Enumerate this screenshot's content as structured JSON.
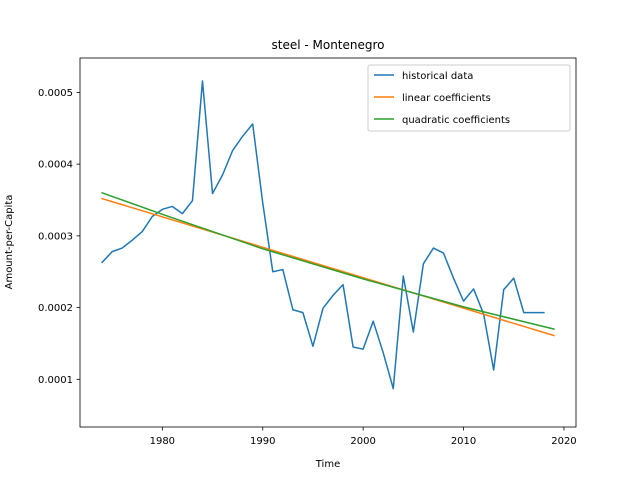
{
  "chart_data": {
    "type": "line",
    "title": "steel - Montenegro",
    "xlabel": "Time",
    "ylabel": "Amount-per-Capita",
    "xlim": [
      1971.8,
      2021.2
    ],
    "ylim": [
      3.35e-05,
      0.000548
    ],
    "xticks": [
      1980,
      1990,
      2000,
      2010,
      2020
    ],
    "xtick_labels": [
      "1980",
      "1990",
      "2000",
      "2010",
      "2020"
    ],
    "yticks": [
      0.0001,
      0.0002,
      0.0003,
      0.0004,
      0.0005
    ],
    "ytick_labels": [
      "0.0001",
      "0.0002",
      "0.0003",
      "0.0004",
      "0.0005"
    ],
    "grid": false,
    "legend_position": "top-right",
    "series": [
      {
        "name": "historical data",
        "color": "#1f77b4",
        "x": [
          1974,
          1975,
          1976,
          1977,
          1978,
          1979,
          1980,
          1981,
          1982,
          1983,
          1984,
          1985,
          1986,
          1987,
          1988,
          1989,
          1990,
          1991,
          1992,
          1993,
          1994,
          1995,
          1996,
          1997,
          1998,
          1999,
          2000,
          2001,
          2002,
          2003,
          2004,
          2005,
          2006,
          2007,
          2008,
          2009,
          2010,
          2011,
          2012,
          2013,
          2014,
          2015,
          2016,
          2017,
          2018
        ],
        "y": [
          0.000263,
          0.000278,
          0.000283,
          0.000294,
          0.000306,
          0.000327,
          0.000337,
          0.000341,
          0.000331,
          0.000349,
          0.000516,
          0.000359,
          0.000385,
          0.000419,
          0.000439,
          0.000456,
          0.000346,
          0.00025,
          0.000253,
          0.000197,
          0.000193,
          0.000146,
          0.000199,
          0.000217,
          0.000232,
          0.000145,
          0.000142,
          0.000181,
          0.000137,
          8.7e-05,
          0.000244,
          0.000166,
          0.000261,
          0.000283,
          0.000276,
          0.000241,
          0.000209,
          0.000226,
          0.000191,
          0.000113,
          0.000225,
          0.000241,
          0.000193,
          0.000193,
          0.000193
        ]
      },
      {
        "name": "linear coefficients",
        "color": "#ff7f0e",
        "x": [
          1974,
          2019
        ],
        "y": [
          0.000352,
          0.000161
        ]
      },
      {
        "name": "quadratic coefficients",
        "color": "#2ca02c",
        "x": [
          1974,
          1980,
          1990,
          2000,
          2010,
          2019
        ],
        "y": [
          0.00036,
          0.00033,
          0.000282,
          0.00024,
          0.000201,
          0.00017
        ]
      }
    ]
  }
}
